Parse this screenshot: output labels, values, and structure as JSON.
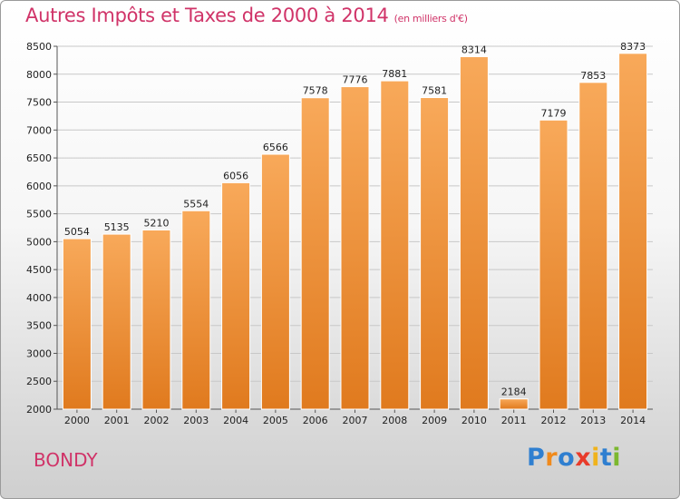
{
  "title": "Autres Impôts et Taxes de 2000 à 2014",
  "subtitle": "(en milliers d'€)",
  "city": "BONDY",
  "logo": {
    "text": "Proxiti",
    "letters": [
      {
        "ch": "P",
        "color": "#2f7fd0"
      },
      {
        "ch": "r",
        "color": "#f08a1c"
      },
      {
        "ch": "o",
        "color": "#2f7fd0"
      },
      {
        "ch": "x",
        "color": "#e83b2a"
      },
      {
        "ch": "i",
        "color": "#f0b31c"
      },
      {
        "ch": "t",
        "color": "#2f7fd0"
      },
      {
        "ch": "i",
        "color": "#7cb82f"
      }
    ]
  },
  "colors": {
    "bar_light": "#f8a95a",
    "bar_dark": "#e07a1e",
    "title": "#d03368",
    "grid": "#c8c8c8"
  },
  "chart_data": {
    "type": "bar",
    "title": "Autres Impôts et Taxes de 2000 à 2014",
    "subtitle": "(en milliers d'€)",
    "categories": [
      "2000",
      "2001",
      "2002",
      "2003",
      "2004",
      "2005",
      "2006",
      "2007",
      "2008",
      "2009",
      "2010",
      "2011",
      "2012",
      "2013",
      "2014"
    ],
    "values": [
      5054,
      5135,
      5210,
      5554,
      6056,
      6566,
      7578,
      7776,
      7881,
      7581,
      8314,
      2184,
      7179,
      7853,
      8373
    ],
    "ylim": [
      2000,
      8500
    ],
    "yticks": [
      2000,
      2500,
      3000,
      3500,
      4000,
      4500,
      5000,
      5500,
      6000,
      6500,
      7000,
      7500,
      8000,
      8500
    ],
    "grid": true,
    "data_labels": true
  }
}
